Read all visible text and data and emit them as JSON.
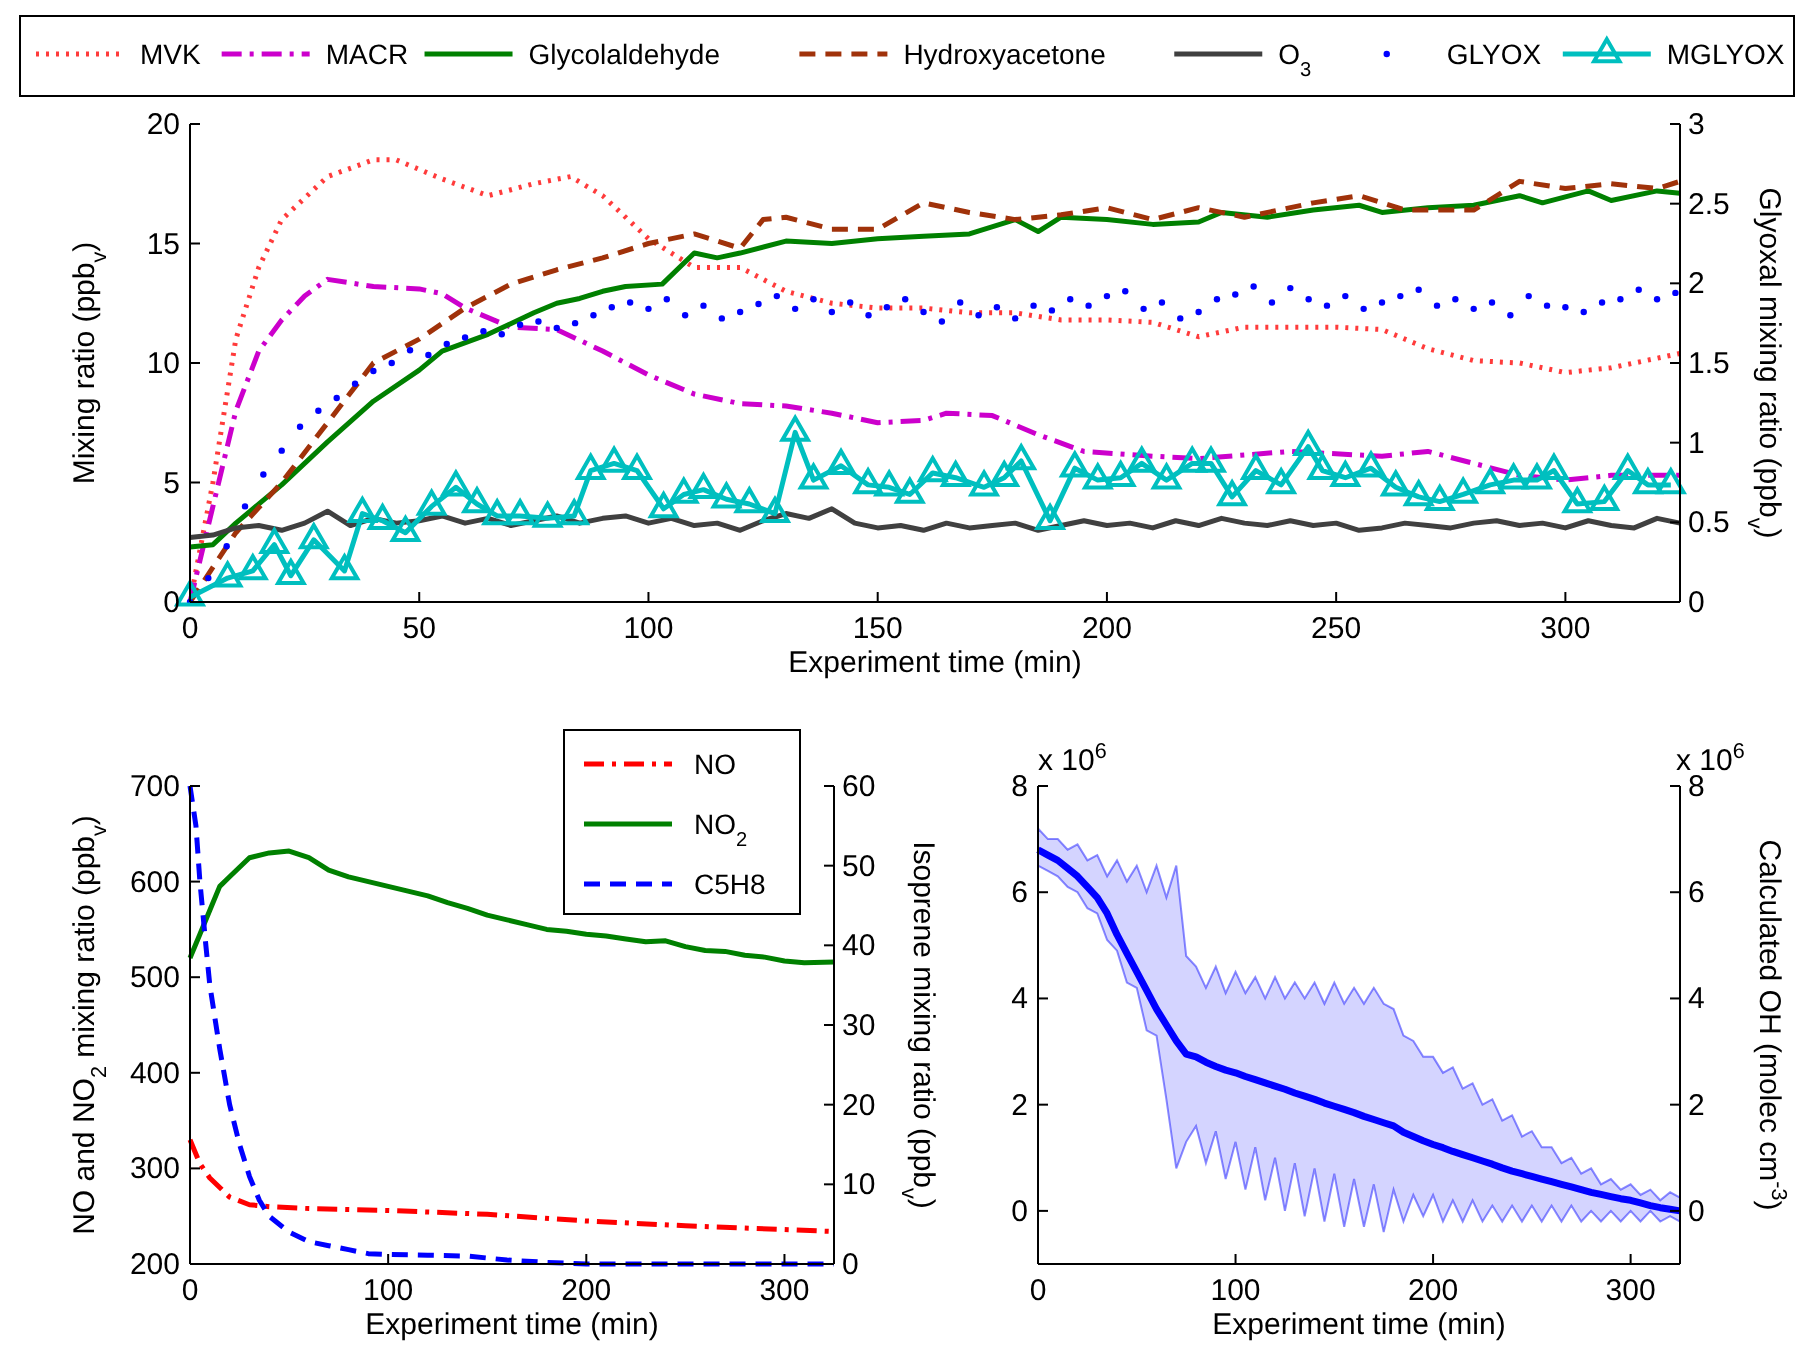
{
  "chart_data": [
    {
      "type": "line",
      "xlabel": "Experiment time (min)",
      "ylabel": "Mixing ratio (ppb$_{v}$)",
      "y2label": "Glyoxal mixing ratio (ppb$_{v}$)",
      "xlim": [
        0,
        325
      ],
      "xticks": [
        0,
        50,
        100,
        150,
        200,
        250,
        300
      ],
      "ylim": [
        0,
        20
      ],
      "yticks": [
        0,
        5,
        10,
        15,
        20
      ],
      "y2lim": [
        0,
        3
      ],
      "y2ticks": [
        0,
        0.5,
        1,
        1.5,
        2,
        2.5,
        3
      ],
      "grid": false,
      "legend": "top",
      "series": [
        {
          "name": "MVK",
          "color": "#ff3b3b",
          "line_style": "dotted",
          "x": [
            0,
            5,
            10,
            15,
            20,
            30,
            40,
            45,
            55,
            65,
            75,
            83,
            90,
            100,
            110,
            120,
            130,
            140,
            150,
            160,
            170,
            180,
            190,
            200,
            210,
            220,
            230,
            240,
            250,
            260,
            270,
            280,
            290,
            300,
            310,
            325
          ],
          "values": [
            0,
            5,
            11,
            14,
            16,
            17.8,
            18.5,
            18.5,
            17.7,
            17,
            17.5,
            17.8,
            17,
            15.2,
            14,
            14,
            13,
            12.5,
            12.3,
            12.3,
            12.1,
            12.1,
            11.8,
            11.8,
            11.7,
            11.1,
            11.5,
            11.5,
            11.5,
            11.4,
            10.6,
            10.1,
            10,
            9.6,
            9.8,
            10.4
          ]
        },
        {
          "name": "MACR",
          "color": "#cc00cc",
          "line_style": "dashdot",
          "x": [
            0,
            5,
            10,
            15,
            20,
            25,
            30,
            40,
            50,
            55,
            60,
            70,
            80,
            90,
            100,
            110,
            120,
            130,
            140,
            150,
            160,
            165,
            175,
            185,
            195,
            210,
            220,
            240,
            260,
            270,
            280,
            290,
            300,
            310,
            325
          ],
          "values": [
            0,
            4,
            8,
            10.5,
            11.8,
            12.8,
            13.5,
            13.2,
            13.1,
            12.9,
            12.3,
            11.5,
            11.4,
            10.5,
            9.5,
            8.7,
            8.3,
            8.2,
            7.9,
            7.5,
            7.6,
            7.9,
            7.8,
            7,
            6.3,
            6.1,
            6,
            6.3,
            6.1,
            6.3,
            5.8,
            5.3,
            5.1,
            5.3,
            5.3
          ]
        },
        {
          "name": "Glycolaldehyde",
          "color": "#008000",
          "line_style": "solid",
          "x": [
            0,
            5,
            10,
            20,
            30,
            40,
            50,
            55,
            65,
            75,
            80,
            85,
            90,
            95,
            103,
            110,
            115,
            120,
            130,
            140,
            150,
            160,
            170,
            180,
            185,
            190,
            200,
            210,
            220,
            225,
            235,
            245,
            255,
            260,
            270,
            280,
            290,
            295,
            305,
            310,
            320,
            325
          ],
          "values": [
            2.3,
            2.4,
            3.3,
            4.9,
            6.7,
            8.4,
            9.7,
            10.5,
            11.2,
            12.1,
            12.5,
            12.7,
            13,
            13.2,
            13.3,
            14.6,
            14.4,
            14.6,
            15.1,
            15,
            15.2,
            15.3,
            15.4,
            16,
            15.5,
            16.1,
            16,
            15.8,
            15.9,
            16.3,
            16.1,
            16.4,
            16.6,
            16.3,
            16.5,
            16.6,
            17,
            16.7,
            17.2,
            16.8,
            17.2,
            17.1
          ]
        },
        {
          "name": "Hydroxyacetone",
          "color": "#a0320a",
          "line_style": "dashed",
          "x": [
            0,
            10,
            20,
            30,
            40,
            50,
            60,
            70,
            80,
            90,
            100,
            110,
            120,
            125,
            130,
            140,
            150,
            160,
            170,
            180,
            190,
            200,
            210,
            220,
            230,
            245,
            255,
            265,
            280,
            290,
            300,
            310,
            320,
            325
          ],
          "values": [
            0,
            2.9,
            5,
            7.5,
            10,
            11,
            12.3,
            13.3,
            13.9,
            14.4,
            15,
            15.4,
            14.8,
            16,
            16.1,
            15.6,
            15.6,
            16.7,
            16.3,
            16,
            16.2,
            16.5,
            16,
            16.5,
            16.1,
            16.7,
            17,
            16.4,
            16.4,
            17.6,
            17.3,
            17.5,
            17.3,
            17.6
          ]
        },
        {
          "name": "O$_{3}$",
          "color": "#404040",
          "line_style": "solid",
          "x": [
            0,
            5,
            10,
            15,
            20,
            25,
            30,
            35,
            40,
            45,
            50,
            55,
            60,
            65,
            70,
            75,
            80,
            85,
            90,
            95,
            100,
            105,
            110,
            115,
            120,
            125,
            130,
            135,
            140,
            145,
            150,
            155,
            160,
            165,
            170,
            175,
            180,
            185,
            190,
            195,
            200,
            205,
            210,
            215,
            220,
            225,
            230,
            235,
            240,
            245,
            250,
            255,
            260,
            265,
            270,
            275,
            280,
            285,
            290,
            295,
            300,
            305,
            310,
            315,
            320,
            325
          ],
          "values": [
            2.7,
            2.8,
            3.1,
            3.2,
            3,
            3.3,
            3.8,
            3.2,
            3.5,
            3.3,
            3.4,
            3.6,
            3.3,
            3.5,
            3.2,
            3.4,
            3.6,
            3.3,
            3.5,
            3.6,
            3.3,
            3.5,
            3.2,
            3.3,
            3,
            3.4,
            3.7,
            3.5,
            3.9,
            3.3,
            3.1,
            3.2,
            3,
            3.3,
            3.1,
            3.2,
            3.3,
            3,
            3.2,
            3.4,
            3.2,
            3.3,
            3.1,
            3.4,
            3.2,
            3.5,
            3.3,
            3.2,
            3.4,
            3.2,
            3.3,
            3,
            3.1,
            3.3,
            3.2,
            3.1,
            3.3,
            3.4,
            3.2,
            3.3,
            3.1,
            3.4,
            3.2,
            3.1,
            3.5,
            3.3
          ]
        },
        {
          "name": "GLYOX",
          "color": "#0000ff",
          "type": "scatter",
          "axis": "y2",
          "marker": "circle",
          "x": [
            0,
            4,
            8,
            12,
            16,
            20,
            24,
            28,
            32,
            36,
            40,
            44,
            48,
            52,
            56,
            60,
            64,
            68,
            72,
            76,
            80,
            84,
            88,
            92,
            96,
            100,
            104,
            108,
            112,
            116,
            120,
            124,
            128,
            132,
            136,
            140,
            144,
            148,
            152,
            156,
            160,
            164,
            168,
            172,
            176,
            180,
            184,
            188,
            192,
            196,
            200,
            204,
            208,
            212,
            216,
            220,
            224,
            228,
            232,
            236,
            240,
            244,
            248,
            252,
            256,
            260,
            264,
            268,
            272,
            276,
            280,
            284,
            288,
            292,
            296,
            300,
            304,
            308,
            312,
            316,
            320,
            324
          ],
          "values": [
            0,
            0.15,
            0.35,
            0.6,
            0.8,
            0.95,
            1.1,
            1.2,
            1.28,
            1.37,
            1.45,
            1.5,
            1.58,
            1.55,
            1.62,
            1.66,
            1.7,
            1.68,
            1.74,
            1.76,
            1.72,
            1.75,
            1.8,
            1.85,
            1.88,
            1.84,
            1.9,
            1.8,
            1.86,
            1.78,
            1.82,
            1.87,
            1.92,
            1.84,
            1.9,
            1.82,
            1.88,
            1.8,
            1.85,
            1.9,
            1.82,
            1.76,
            1.88,
            1.8,
            1.85,
            1.78,
            1.86,
            1.83,
            1.9,
            1.86,
            1.92,
            1.95,
            1.84,
            1.88,
            1.78,
            1.82,
            1.9,
            1.93,
            1.98,
            1.88,
            1.97,
            1.9,
            1.86,
            1.92,
            1.84,
            1.88,
            1.92,
            1.96,
            1.86,
            1.9,
            1.84,
            1.88,
            1.8,
            1.92,
            1.86,
            1.85,
            1.82,
            1.88,
            1.9,
            1.96,
            1.9,
            1.94
          ]
        },
        {
          "name": "MGLYOX",
          "color": "#00bfbf",
          "line_style": "solid",
          "marker": "triangle",
          "x": [
            0,
            8.2,
            13.7,
            18.4,
            22,
            27,
            33.7,
            37.6,
            42,
            47,
            52.7,
            58,
            62.6,
            67,
            72,
            78,
            83.8,
            87.4,
            92.5,
            97.5,
            103.3,
            107.7,
            112,
            117,
            122,
            127.6,
            132,
            136,
            142,
            147.9,
            152.5,
            157,
            162,
            167,
            173.2,
            177.6,
            181.3,
            187.6,
            193,
            198,
            203,
            207.6,
            213,
            218.6,
            222.7,
            227.3,
            232.5,
            238,
            243.9,
            247,
            252,
            257.6,
            263,
            268,
            272.6,
            277.7,
            283.6,
            288.7,
            293.8,
            297.5,
            302.6,
            308.5,
            313.6,
            318,
            323
          ],
          "values": [
            0.2,
            1,
            1.3,
            2.4,
            1.1,
            2.6,
            1.3,
            3.7,
            3.4,
            2.9,
            4,
            4.8,
            4.1,
            3.6,
            3.6,
            3.5,
            3.6,
            5.5,
            5.8,
            5.5,
            3.9,
            4.5,
            4.7,
            4.3,
            4.1,
            3.7,
            7.1,
            5.1,
            5.7,
            4.9,
            4.8,
            4.5,
            5.4,
            5.2,
            4.8,
            5.2,
            5.9,
            3.4,
            5.6,
            5.1,
            5.2,
            5.8,
            5.1,
            5.8,
            5.8,
            4.4,
            5.5,
            4.9,
            6.5,
            5.5,
            5.2,
            5.6,
            4.8,
            4.4,
            4.2,
            4.5,
            4.9,
            5.1,
            5.1,
            5.5,
            4.1,
            4.2,
            5.5,
            4.9,
            4.9
          ]
        }
      ]
    },
    {
      "type": "line",
      "xlabel": "Experiment time (min)",
      "ylabel": "NO and NO$_{2}$ mixing ratio (ppb$_{v}$)",
      "y2label": "Isoprene mixing ratio (ppb$_{v}$)",
      "xlim": [
        0,
        325
      ],
      "xticks": [
        0,
        100,
        200,
        300
      ],
      "ylim": [
        200,
        700
      ],
      "yticks": [
        200,
        300,
        400,
        500,
        600,
        700
      ],
      "y2lim": [
        0,
        60
      ],
      "y2ticks": [
        0,
        10,
        20,
        30,
        40,
        50,
        60
      ],
      "grid": false,
      "legend": "top right",
      "series": [
        {
          "name": "NO",
          "color": "#ff0000",
          "line_style": "dashdot",
          "x": [
            0,
            5,
            10,
            20,
            30,
            40,
            60,
            100,
            150,
            200,
            250,
            300,
            325
          ],
          "values": [
            330,
            305,
            290,
            270,
            262,
            260,
            258,
            256,
            252,
            245,
            240,
            236,
            234
          ]
        },
        {
          "name": "NO$_{2}$",
          "color": "#008000",
          "line_style": "solid",
          "x": [
            0,
            5,
            10,
            15,
            20,
            25,
            30,
            40,
            50,
            60,
            70,
            80,
            90,
            100,
            110,
            120,
            130,
            140,
            150,
            160,
            170,
            180,
            190,
            200,
            210,
            220,
            230,
            240,
            250,
            260,
            270,
            280,
            290,
            300,
            310,
            325
          ],
          "values": [
            520,
            545,
            570,
            595,
            605,
            615,
            625,
            630,
            632,
            625,
            612,
            605,
            600,
            595,
            590,
            585,
            578,
            572,
            565,
            560,
            555,
            550,
            548,
            545,
            543,
            540,
            537,
            538,
            532,
            528,
            527,
            523,
            521,
            517,
            515,
            516
          ]
        },
        {
          "name": "C5H8",
          "color": "#0000ff",
          "line_style": "dashed",
          "axis": "y2",
          "x": [
            0,
            3,
            5,
            8,
            10,
            15,
            20,
            25,
            30,
            35,
            40,
            50,
            60,
            70,
            80,
            90,
            100,
            120,
            140,
            160,
            180,
            200,
            325
          ],
          "values": [
            60,
            55,
            48,
            40,
            35,
            27,
            20,
            15,
            11,
            8,
            6,
            4,
            2.8,
            2.3,
            1.8,
            1.3,
            1.2,
            1.1,
            1,
            0.5,
            0.2,
            0,
            0
          ]
        }
      ]
    },
    {
      "type": "line",
      "xlabel": "Experiment time (min)",
      "y2label": "Calculated OH (molec cm$^{-3}$)",
      "xlim": [
        0,
        325
      ],
      "xticks": [
        0,
        100,
        200,
        300
      ],
      "ylim": [
        -1,
        8
      ],
      "yticks": [
        0,
        2,
        4,
        6,
        8
      ],
      "y2lim": [
        -1,
        8
      ],
      "y2ticks": [
        0,
        2,
        4,
        6,
        8
      ],
      "grid": false,
      "annotations": [
        "x 10$^{6}$",
        "x 10$^{6}$"
      ],
      "x": [
        0,
        5,
        10,
        15,
        20,
        25,
        30,
        35,
        40,
        45,
        50,
        55,
        60,
        65,
        70,
        75,
        80,
        85,
        90,
        95,
        100,
        105,
        110,
        115,
        120,
        125,
        130,
        135,
        140,
        145,
        150,
        155,
        160,
        165,
        170,
        175,
        180,
        185,
        190,
        195,
        200,
        205,
        210,
        215,
        220,
        225,
        230,
        235,
        240,
        245,
        250,
        255,
        260,
        265,
        270,
        275,
        280,
        285,
        290,
        295,
        300,
        305,
        310,
        315,
        320,
        325
      ],
      "series": [
        {
          "color": "#0000ff",
          "line_style": "solid",
          "values": [
            6.8,
            6.7,
            6.6,
            6.45,
            6.3,
            6.1,
            5.9,
            5.6,
            5.2,
            4.85,
            4.5,
            4.15,
            3.8,
            3.5,
            3.2,
            2.95,
            2.9,
            2.8,
            2.72,
            2.65,
            2.6,
            2.53,
            2.47,
            2.41,
            2.35,
            2.29,
            2.22,
            2.16,
            2.1,
            2.03,
            1.97,
            1.91,
            1.85,
            1.78,
            1.72,
            1.66,
            1.6,
            1.48,
            1.4,
            1.32,
            1.25,
            1.19,
            1.12,
            1.06,
            1,
            0.94,
            0.88,
            0.81,
            0.75,
            0.7,
            0.65,
            0.6,
            0.55,
            0.5,
            0.45,
            0.4,
            0.35,
            0.31,
            0.27,
            0.23,
            0.2,
            0.15,
            0.1,
            0.06,
            0.03,
            0
          ],
          "upper": [
            7.2,
            7,
            7,
            6.8,
            6.9,
            6.6,
            6.7,
            6.3,
            6.6,
            6.2,
            6.5,
            6,
            6.5,
            5.9,
            6.5,
            4.8,
            4.6,
            4.2,
            4.6,
            4.1,
            4.5,
            4.1,
            4.4,
            4,
            4.4,
            4,
            4.3,
            4,
            4.3,
            3.9,
            4.3,
            3.9,
            4.2,
            3.9,
            4.2,
            3.9,
            3.8,
            3.3,
            3.2,
            2.9,
            2.9,
            2.6,
            2.7,
            2.3,
            2.4,
            2,
            2.1,
            1.7,
            1.8,
            1.4,
            1.5,
            1.2,
            1.2,
            0.9,
            1,
            0.7,
            0.8,
            0.5,
            0.6,
            0.4,
            0.5,
            0.3,
            0.4,
            0.2,
            0.35,
            0.25
          ],
          "lower": [
            6.5,
            6.4,
            6.3,
            6.1,
            6,
            5.7,
            5.6,
            5.1,
            4.9,
            4.3,
            4.2,
            3.4,
            3.3,
            2.1,
            0.8,
            1.3,
            1.6,
            0.9,
            1.5,
            0.6,
            1.3,
            0.4,
            1.2,
            0.2,
            1,
            0,
            0.9,
            -0.1,
            0.8,
            -0.2,
            0.7,
            -0.3,
            0.6,
            -0.3,
            0.5,
            -0.4,
            0.4,
            -0.2,
            0.3,
            -0.1,
            0.3,
            -0.2,
            0.2,
            -0.2,
            0.2,
            -0.2,
            0.1,
            -0.2,
            0.1,
            -0.2,
            0.1,
            -0.2,
            0.1,
            -0.2,
            0.1,
            -0.2,
            0,
            -0.2,
            0,
            -0.2,
            0,
            -0.2,
            0,
            -0.2,
            -0.1,
            -0.2
          ]
        }
      ]
    }
  ]
}
